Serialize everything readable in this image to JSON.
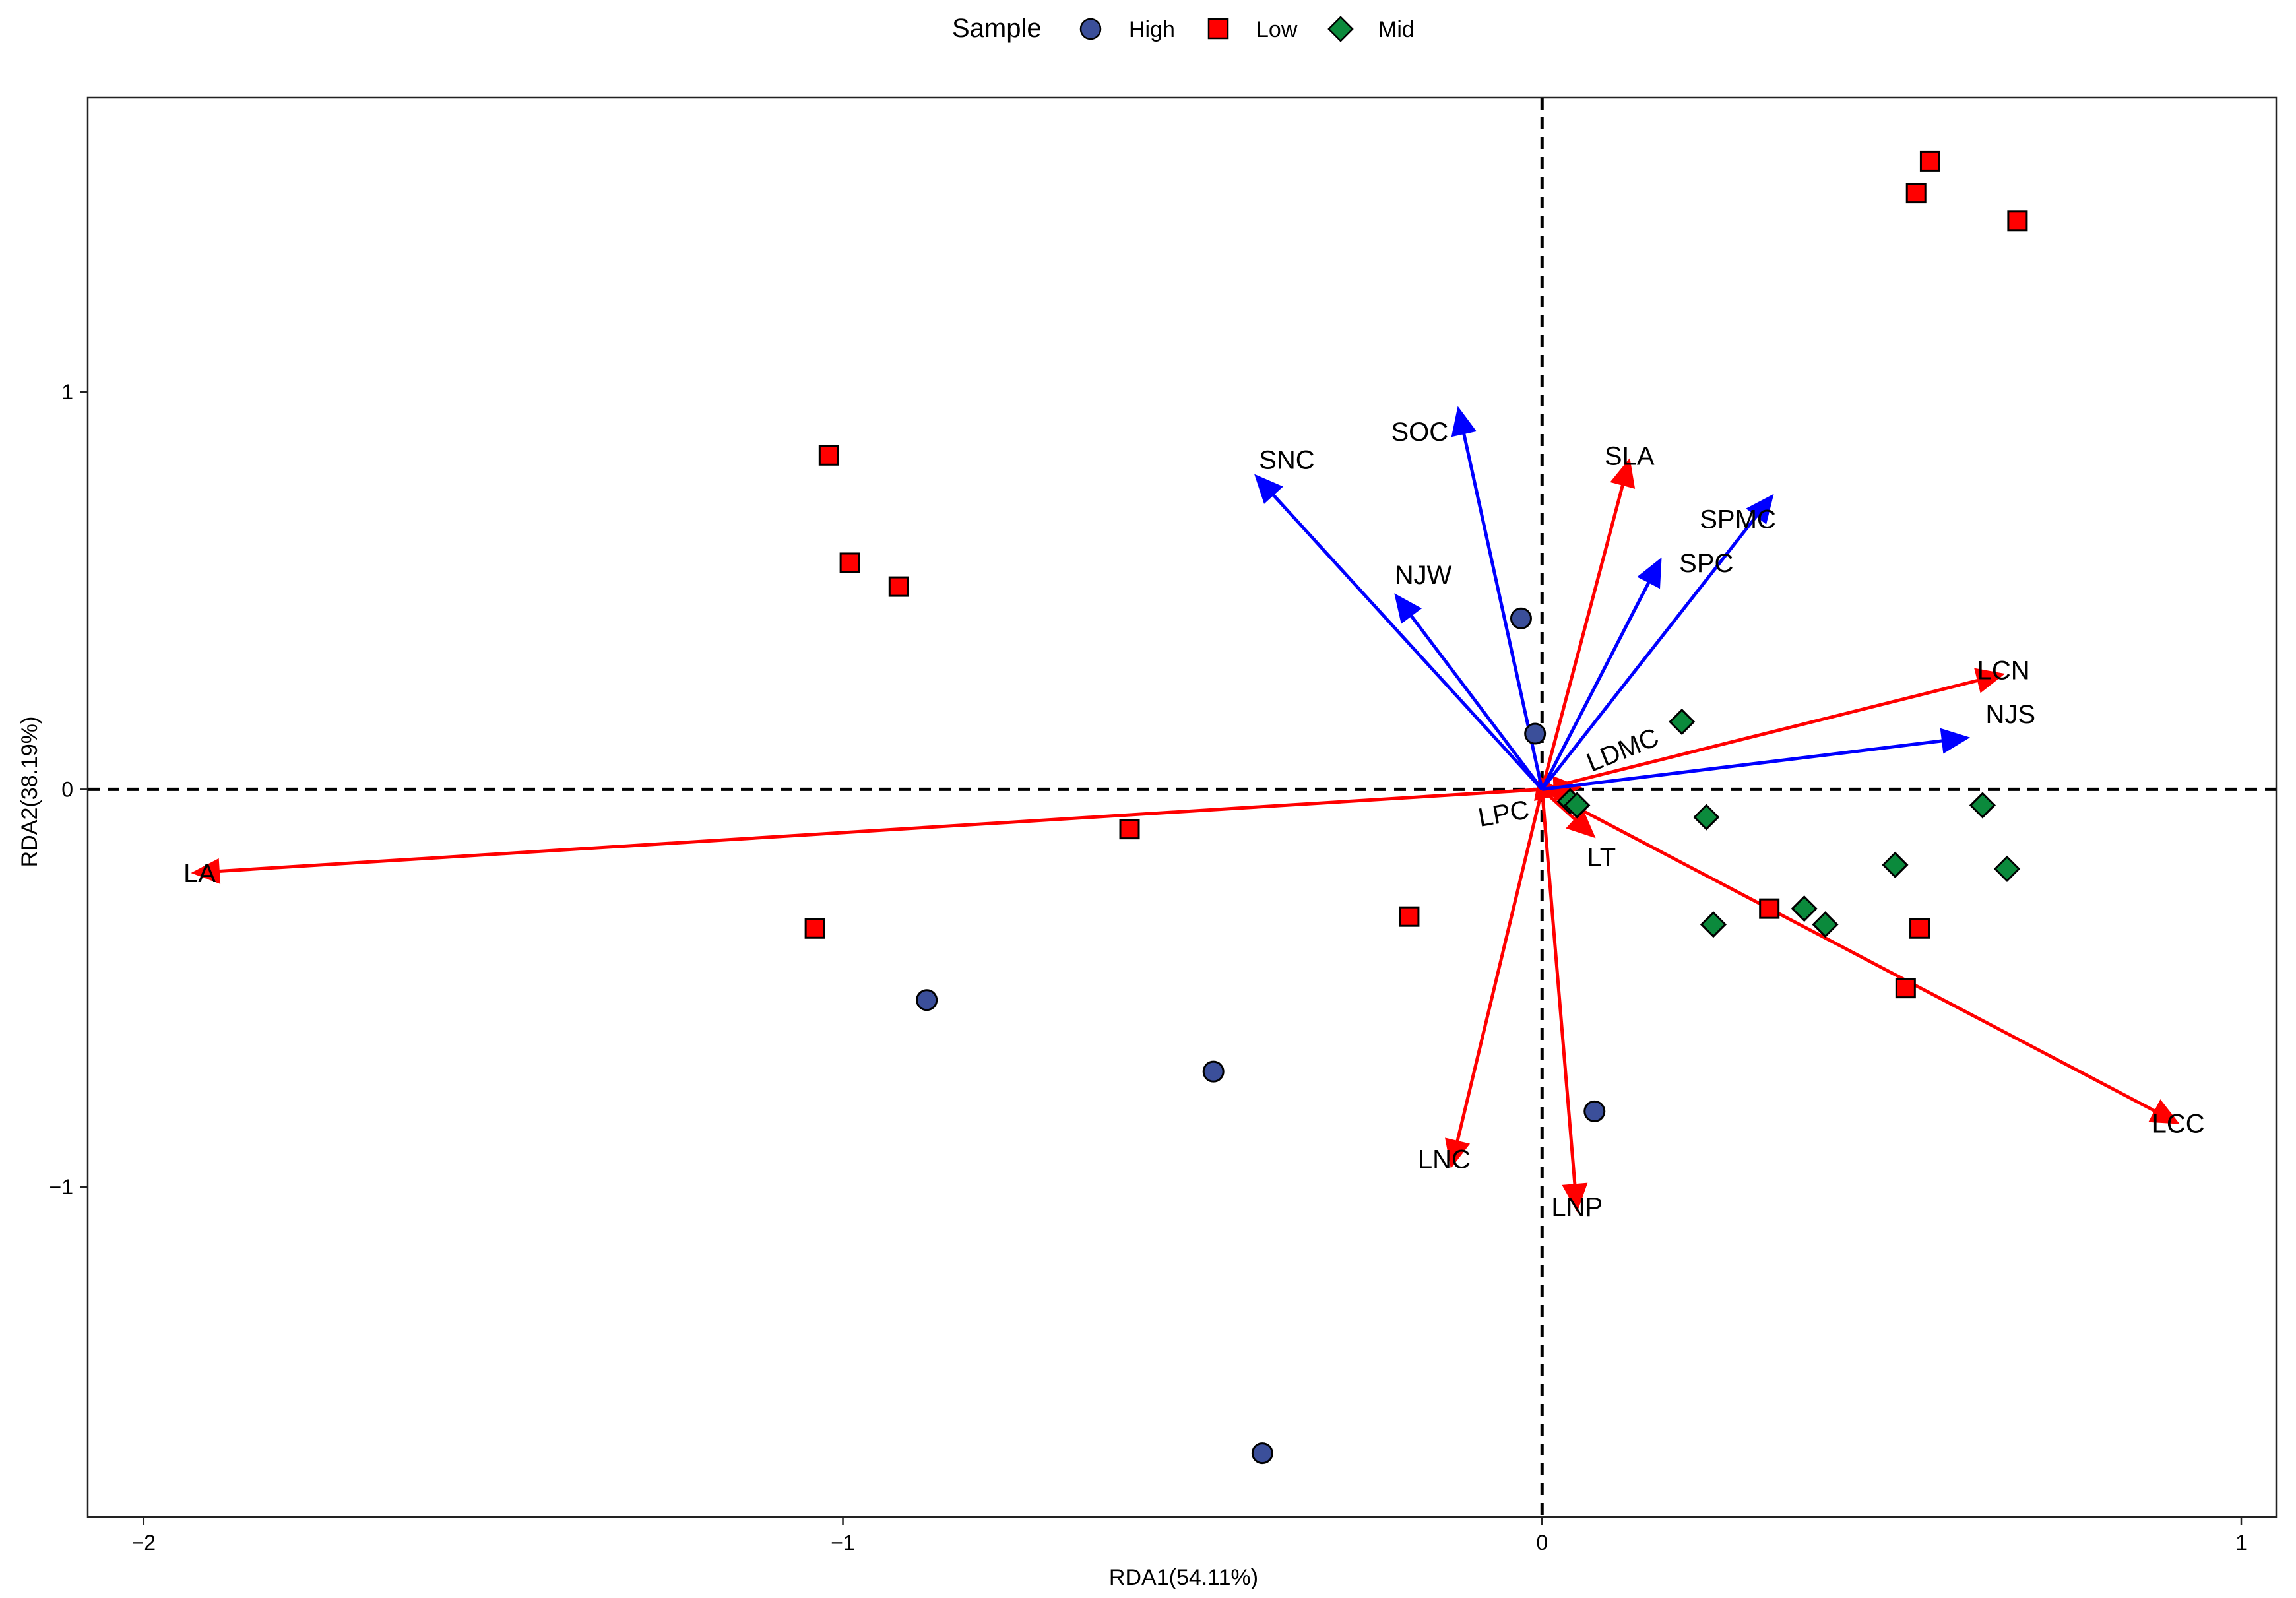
{
  "chart_data": {
    "type": "scatter",
    "subtype": "rda-biplot",
    "xlabel": "RDA1(54.11%)",
    "ylabel": "RDA2(38.19%)",
    "xlim": [
      -2.08,
      1.05
    ],
    "ylim": [
      -1.83,
      1.74
    ],
    "xticks": [
      {
        "value": -2,
        "label": "−2"
      },
      {
        "value": -1,
        "label": "−1"
      },
      {
        "value": 0,
        "label": "0"
      },
      {
        "value": 1,
        "label": "1"
      }
    ],
    "yticks": [
      {
        "value": -1,
        "label": "−1"
      },
      {
        "value": 0,
        "label": "0"
      },
      {
        "value": 1,
        "label": "1"
      }
    ],
    "reference_lines": {
      "x": 0,
      "y": 0,
      "style": "dashed"
    },
    "legend": {
      "title": "Sample",
      "position": "top",
      "entries": [
        {
          "name": "High",
          "shape": "circle",
          "color": "#3B4F9A"
        },
        {
          "name": "Low",
          "shape": "square",
          "color": "#FF0000"
        },
        {
          "name": "Mid",
          "shape": "diamond",
          "color": "#0B8A3C"
        }
      ]
    },
    "series": [
      {
        "name": "High",
        "shape": "circle",
        "color": "#3B4F9A",
        "points": [
          {
            "x": -0.03,
            "y": 0.43
          },
          {
            "x": -0.01,
            "y": 0.14
          },
          {
            "x": -0.88,
            "y": -0.53
          },
          {
            "x": -0.47,
            "y": -0.71
          },
          {
            "x": 0.075,
            "y": -0.81
          },
          {
            "x": -0.4,
            "y": -1.67
          }
        ]
      },
      {
        "name": "Low",
        "shape": "square",
        "color": "#FF0000",
        "points": [
          {
            "x": 0.555,
            "y": 1.58
          },
          {
            "x": 0.535,
            "y": 1.5
          },
          {
            "x": 0.68,
            "y": 1.43
          },
          {
            "x": -1.02,
            "y": 0.84
          },
          {
            "x": -0.99,
            "y": 0.57
          },
          {
            "x": -0.92,
            "y": 0.51
          },
          {
            "x": -0.59,
            "y": -0.1
          },
          {
            "x": -1.04,
            "y": -0.35
          },
          {
            "x": -0.19,
            "y": -0.32
          },
          {
            "x": 0.325,
            "y": -0.3
          },
          {
            "x": 0.54,
            "y": -0.35
          },
          {
            "x": 0.52,
            "y": -0.5
          }
        ]
      },
      {
        "name": "Mid",
        "shape": "diamond",
        "color": "#0B8A3C",
        "points": [
          {
            "x": 0.2,
            "y": 0.17
          },
          {
            "x": 0.235,
            "y": -0.07
          },
          {
            "x": 0.63,
            "y": -0.04
          },
          {
            "x": 0.505,
            "y": -0.19
          },
          {
            "x": 0.665,
            "y": -0.2
          },
          {
            "x": 0.375,
            "y": -0.3
          },
          {
            "x": 0.405,
            "y": -0.34
          },
          {
            "x": 0.245,
            "y": -0.34
          },
          {
            "x": 0.04,
            "y": -0.03
          },
          {
            "x": 0.05,
            "y": -0.04
          }
        ]
      }
    ],
    "vectors": [
      {
        "name": "LA",
        "x": -1.93,
        "y": -0.21,
        "color": "#FF0000",
        "label_x": -1.92,
        "label_y": -0.21
      },
      {
        "name": "LCN",
        "x": 0.66,
        "y": 0.29,
        "color": "#FF0000",
        "label_x": 0.66,
        "label_y": 0.3
      },
      {
        "name": "LCC",
        "x": 0.91,
        "y": -0.84,
        "color": "#FF0000",
        "label_x": 0.91,
        "label_y": -0.84
      },
      {
        "name": "SLA",
        "x": 0.125,
        "y": 0.83,
        "color": "#FF0000",
        "label_x": 0.125,
        "label_y": 0.84
      },
      {
        "name": "LNC",
        "x": -0.13,
        "y": -0.95,
        "color": "#FF0000",
        "label_x": -0.14,
        "label_y": -0.93
      },
      {
        "name": "LNP",
        "x": 0.05,
        "y": -1.06,
        "color": "#FF0000",
        "label_x": 0.05,
        "label_y": -1.05
      },
      {
        "name": "LT",
        "x": 0.075,
        "y": -0.12,
        "color": "#FF0000",
        "label_x": 0.085,
        "label_y": -0.17
      },
      {
        "name": "LDMC",
        "x": 0.055,
        "y": 0.005,
        "color": "#FF0000",
        "label_x": 0.115,
        "label_y": 0.1,
        "rotate": -22
      },
      {
        "name": "LPC",
        "x": 0.03,
        "y": -0.01,
        "color": "#FF0000",
        "label_x": -0.055,
        "label_y": -0.06,
        "rotate": -10
      },
      {
        "name": "SOC",
        "x": -0.12,
        "y": 0.96,
        "color": "#0000FF",
        "label_x": -0.175,
        "label_y": 0.9
      },
      {
        "name": "SNC",
        "x": -0.41,
        "y": 0.79,
        "color": "#0000FF",
        "label_x": -0.365,
        "label_y": 0.83
      },
      {
        "name": "NJW",
        "x": -0.21,
        "y": 0.49,
        "color": "#0000FF",
        "label_x": -0.17,
        "label_y": 0.54
      },
      {
        "name": "SPMC",
        "x": 0.33,
        "y": 0.74,
        "color": "#0000FF",
        "label_x": 0.28,
        "label_y": 0.68
      },
      {
        "name": "SPC",
        "x": 0.17,
        "y": 0.58,
        "color": "#0000FF",
        "label_x": 0.235,
        "label_y": 0.57
      },
      {
        "name": "NJS",
        "x": 0.61,
        "y": 0.13,
        "color": "#0000FF",
        "label_x": 0.67,
        "label_y": 0.19
      }
    ]
  }
}
